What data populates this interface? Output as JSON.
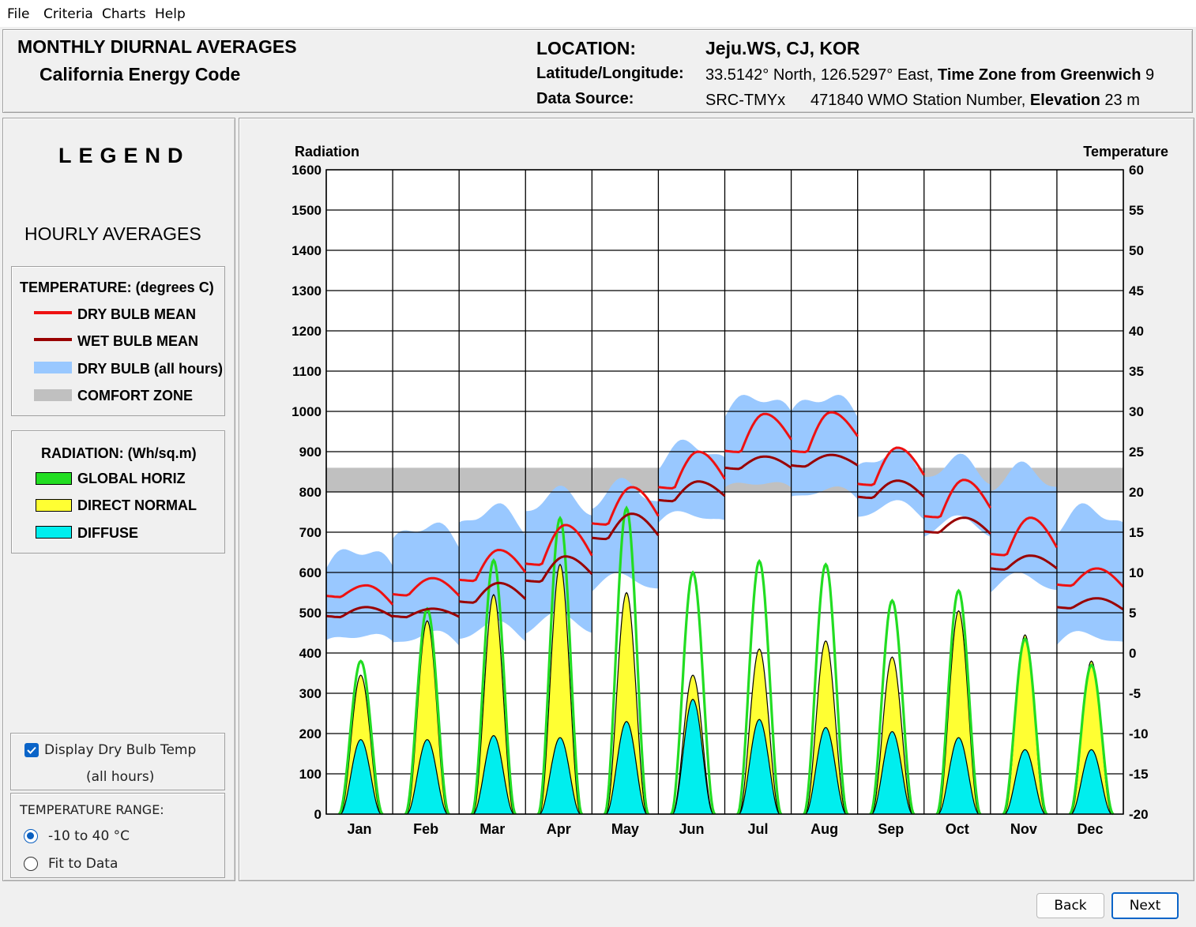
{
  "menu": [
    "File",
    "Criteria",
    "Charts",
    "Help"
  ],
  "header": {
    "title": "MONTHLY DIURNAL AVERAGES",
    "subtitle": "California Energy Code",
    "location_label": "LOCATION:",
    "location_value": "Jeju.WS, CJ, KOR",
    "latlon_label": "Latitude/Longitude:",
    "latlon_value": "33.5142° North, 126.5297° East,",
    "tz_label": "Time Zone from Greenwich",
    "tz_value": "9",
    "source_label": "Data Source:",
    "source_value": "SRC-TMYx",
    "station_value": "471840 WMO Station Number,",
    "elev_label": "Elevation",
    "elev_value": "23 m"
  },
  "legend": {
    "title": "LEGEND",
    "subtitle": "HOURLY AVERAGES",
    "temp_head": "TEMPERATURE: (degrees C)",
    "temp_items": [
      {
        "label": "DRY BULB MEAN",
        "color": "#ee1111"
      },
      {
        "label": "WET BULB MEAN",
        "color": "#990000"
      },
      {
        "label": "DRY BULB (all hours)",
        "color": "#99c8ff"
      },
      {
        "label": "COMFORT ZONE",
        "color": "#c0c0c0"
      }
    ],
    "rad_head": "RADIATION: (Wh/sq.m)",
    "rad_items": [
      {
        "label": "GLOBAL HORIZ",
        "color": "#22dd22"
      },
      {
        "label": "DIRECT NORMAL",
        "color": "#ffff33"
      },
      {
        "label": "DIFFUSE",
        "color": "#00eeee"
      }
    ]
  },
  "controls": {
    "display_dry_bulb_line1": "Display Dry Bulb Temp",
    "display_dry_bulb_line2": "(all hours)",
    "display_dry_bulb_checked": true,
    "range_label": "TEMPERATURE RANGE:",
    "range_options": [
      "-10 to 40 °C",
      "Fit to Data"
    ],
    "range_selected": 0
  },
  "buttons": {
    "back": "Back",
    "next": "Next"
  },
  "chart_data": {
    "type": "line",
    "left_axis_title": "Radiation",
    "right_axis_title": "Temperature",
    "left_ticks": [
      "0",
      "100",
      "200",
      "300",
      "400",
      "500",
      "600",
      "700",
      "800",
      "900",
      "1000",
      "1100",
      "1200",
      "1300",
      "1400",
      "1500",
      "1600"
    ],
    "right_ticks": [
      "-20",
      "-15",
      "-10",
      "-5",
      "0",
      "5",
      "10",
      "15",
      "20",
      "25",
      "30",
      "35",
      "40",
      "45",
      "50",
      "55",
      "60"
    ],
    "ylim_radiation": [
      0,
      1600
    ],
    "ylim_temperature": [
      -20,
      60
    ],
    "categories": [
      "Jan",
      "Feb",
      "Mar",
      "Apr",
      "May",
      "Jun",
      "Jul",
      "Aug",
      "Sep",
      "Oct",
      "Nov",
      "Dec"
    ],
    "comfort_zone_temp": [
      20,
      23
    ],
    "series": [
      {
        "key": "dry_bulb_mean",
        "color": "#ee1111",
        "values": [
          [
            7.1,
            8.4,
            6.0
          ],
          [
            7.3,
            9.3,
            7.1
          ],
          [
            9.1,
            12.8,
            10.0
          ],
          [
            11.1,
            15.9,
            12.1
          ],
          [
            16.1,
            20.6,
            17.0
          ],
          [
            20.6,
            25.0,
            21.6
          ],
          [
            25.1,
            29.7,
            26.5
          ],
          [
            25.1,
            29.9,
            26.9
          ],
          [
            21.0,
            25.5,
            22.1
          ],
          [
            17.0,
            21.5,
            18.0
          ],
          [
            12.3,
            16.8,
            13.1
          ],
          [
            8.5,
            10.5,
            8.2
          ]
        ]
      },
      {
        "key": "wet_bulb_mean",
        "color": "#990000",
        "values": [
          [
            4.6,
            5.7,
            4.5
          ],
          [
            4.6,
            5.5,
            4.5
          ],
          [
            6.4,
            8.7,
            6.7
          ],
          [
            9.0,
            12.0,
            9.8
          ],
          [
            14.3,
            17.3,
            14.6
          ],
          [
            19.0,
            21.3,
            19.5
          ],
          [
            23.0,
            24.4,
            23.0
          ],
          [
            23.3,
            24.6,
            23.3
          ],
          [
            19.4,
            21.4,
            19.4
          ],
          [
            15.1,
            16.8,
            14.8
          ],
          [
            10.5,
            12.1,
            10.5
          ],
          [
            5.7,
            6.8,
            5.4
          ]
        ]
      },
      {
        "key": "dry_bulb_all_hours",
        "color": "#99c8ff",
        "low": [
          1,
          1,
          2,
          3,
          8,
          16,
          20,
          19,
          17,
          15,
          8,
          1
        ],
        "high": [
          13,
          16,
          18,
          20,
          21,
          26,
          32,
          32,
          25,
          24,
          23,
          18
        ]
      },
      {
        "key": "global_horiz",
        "color": "#22dd22",
        "peaks": [
          380,
          510,
          630,
          735,
          760,
          600,
          628,
          620,
          530,
          555,
          435,
          370
        ]
      },
      {
        "key": "direct_normal",
        "color": "#ffff33",
        "peaks": [
          345,
          480,
          545,
          620,
          550,
          345,
          410,
          430,
          390,
          505,
          445,
          380
        ]
      },
      {
        "key": "diffuse",
        "color": "#00eeee",
        "peaks": [
          185,
          185,
          195,
          190,
          230,
          285,
          235,
          215,
          205,
          190,
          160,
          160
        ]
      }
    ]
  }
}
